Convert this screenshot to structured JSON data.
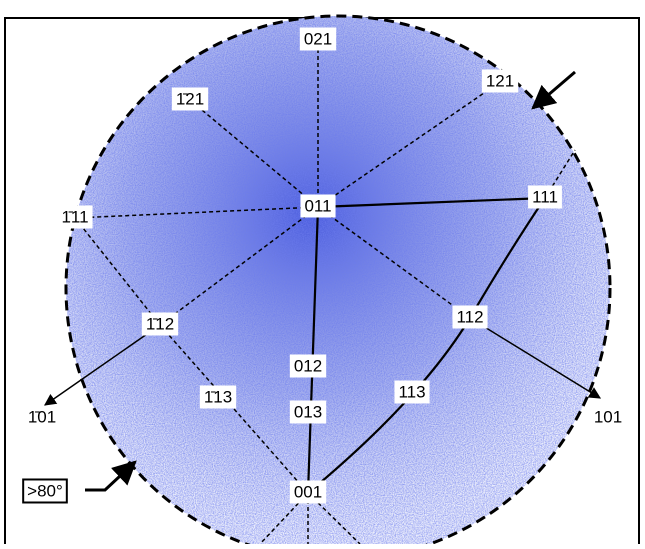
{
  "labels": [
    "021",
    "1̄21",
    "121",
    "011",
    "1̄11",
    "111",
    "1̄12",
    "112",
    "012",
    "1̄13",
    "113",
    "013",
    "001",
    "1̄01",
    "101",
    ">80°"
  ]
}
